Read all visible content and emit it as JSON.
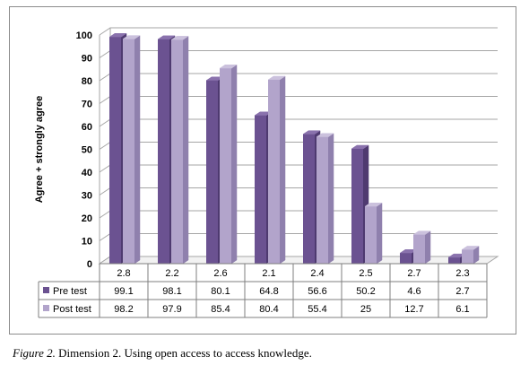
{
  "chart_data": {
    "type": "bar",
    "categories": [
      "2.8",
      "2.2",
      "2.6",
      "2.1",
      "2.4",
      "2.5",
      "2.7",
      "2.3"
    ],
    "series": [
      {
        "name": "Pre test",
        "values": [
          99.1,
          98.1,
          80.1,
          64.8,
          56.6,
          50.2,
          4.6,
          2.7
        ]
      },
      {
        "name": "Post test",
        "values": [
          98.2,
          97.9,
          85.4,
          80.4,
          55.4,
          25,
          12.7,
          6.1
        ]
      }
    ],
    "title": "",
    "xlabel": "",
    "ylabel": "Agree + strongly agree",
    "ylim": [
      0,
      100
    ],
    "yticks": [
      0,
      10,
      20,
      30,
      40,
      50,
      60,
      70,
      80,
      90,
      100
    ],
    "grid": true,
    "legend": "data-table-left",
    "data_table": true
  },
  "colors": {
    "pre_front": "#6b5291",
    "pre_side": "#4f3a70",
    "pre_top": "#8a72ad",
    "post_front": "#b2a4cb",
    "post_side": "#8f80ad",
    "post_top": "#cbc1dd",
    "grid": "#a6a6a6",
    "wall": "#ffffff"
  },
  "caption": {
    "figure_label": "Figure 2.",
    "text": " Dimension 2. Using open access to access knowledge."
  }
}
